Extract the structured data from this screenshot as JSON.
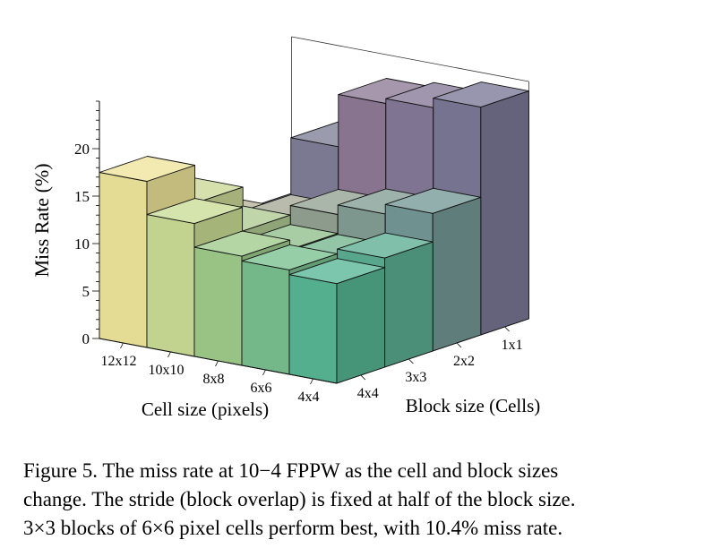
{
  "chart_data": {
    "type": "bar3d",
    "zlabel": "Miss Rate (%)",
    "xlabel": "Cell size (pixels)",
    "ylabel": "Block size (Cells)",
    "zlim": [
      0,
      25
    ],
    "zticks": [
      0,
      5,
      10,
      15,
      20
    ],
    "cell_sizes": [
      "12x12",
      "10x10",
      "8x8",
      "6x6",
      "4x4"
    ],
    "block_sizes": [
      "4x4",
      "3x3",
      "2x2",
      "1x1"
    ],
    "values": [
      [
        17.5,
        13.5,
        9.5,
        8.5
      ],
      [
        14.0,
        11.5,
        11.0,
        17.0
      ],
      [
        11.5,
        10.5,
        12.5,
        22.5
      ],
      [
        11.0,
        10.4,
        13.5,
        23.0
      ],
      [
        10.5,
        11.5,
        14.5,
        24.0
      ]
    ],
    "colors": {
      "cell_size_gradient": [
        "#efef9a",
        "#c9dc94",
        "#9fcb8a",
        "#79c08f",
        "#56b694"
      ],
      "block_size_gradient": [
        "#56b694",
        "#6a9a8c",
        "#8a8198",
        "#6c6f98"
      ]
    }
  },
  "caption": {
    "line1": "Figure 5. The miss rate at 10−4 FPPW as the cell and block sizes",
    "line2": "change. The stride (block overlap) is fixed at half of the block size.",
    "line3": "3×3 blocks of 6×6 pixel cells perform best, with 10.4% miss rate."
  }
}
